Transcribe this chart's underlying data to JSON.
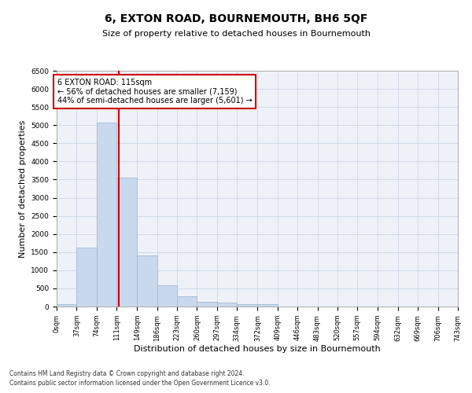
{
  "title": "6, EXTON ROAD, BOURNEMOUTH, BH6 5QF",
  "subtitle": "Size of property relative to detached houses in Bournemouth",
  "xlabel": "Distribution of detached houses by size in Bournemouth",
  "ylabel": "Number of detached properties",
  "bar_values": [
    70,
    1620,
    5080,
    3560,
    1400,
    580,
    285,
    140,
    100,
    75,
    55,
    0,
    0,
    0,
    0,
    0,
    0,
    0,
    0,
    0
  ],
  "bar_edges": [
    0,
    37,
    74,
    111,
    149,
    186,
    223,
    260,
    297,
    334,
    372,
    409,
    446,
    483,
    520,
    557,
    594,
    632,
    669,
    706,
    743
  ],
  "tick_labels": [
    "0sqm",
    "37sqm",
    "74sqm",
    "111sqm",
    "149sqm",
    "186sqm",
    "223sqm",
    "260sqm",
    "297sqm",
    "334sqm",
    "372sqm",
    "409sqm",
    "446sqm",
    "483sqm",
    "520sqm",
    "557sqm",
    "594sqm",
    "632sqm",
    "669sqm",
    "706sqm",
    "743sqm"
  ],
  "bar_color": "#c9d9ed",
  "bar_edge_color": "#a0b8d8",
  "vline_x": 115,
  "vline_color": "#cc0000",
  "ylim": [
    0,
    6500
  ],
  "yticks": [
    0,
    500,
    1000,
    1500,
    2000,
    2500,
    3000,
    3500,
    4000,
    4500,
    5000,
    5500,
    6000,
    6500
  ],
  "annotation_text": "6 EXTON ROAD: 115sqm\n← 56% of detached houses are smaller (7,159)\n44% of semi-detached houses are larger (5,601) →",
  "annotation_box_color": "#cc0000",
  "grid_color": "#d0d8e8",
  "footer1": "Contains HM Land Registry data © Crown copyright and database right 2024.",
  "footer2": "Contains public sector information licensed under the Open Government Licence v3.0.",
  "bg_color": "#eef2f8",
  "title_fontsize": 10,
  "subtitle_fontsize": 8,
  "ylabel_fontsize": 8,
  "xlabel_fontsize": 8,
  "tick_fontsize": 6,
  "annotation_fontsize": 7,
  "footer_fontsize": 5.5
}
